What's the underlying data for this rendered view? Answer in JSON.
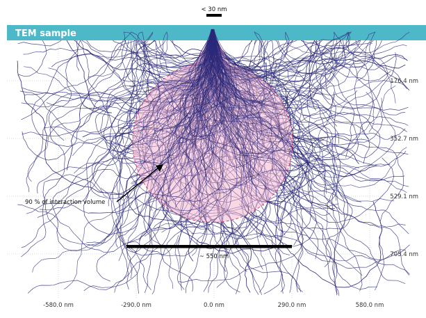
{
  "sample_band": {
    "label": "TEM sample",
    "color": "#4db8c8"
  },
  "beam_width": {
    "label": "< 30 nm"
  },
  "interaction_volume": {
    "label": "90 % of interaction volume",
    "color": "#f4b6cf"
  },
  "lateral_extent": {
    "label": "~ 550 nm"
  },
  "trajectory_color": "#2b2a7a",
  "x_axis": {
    "ticks": [
      {
        "value": -580,
        "label": "-580.0 nm"
      },
      {
        "value": -290,
        "label": "-290.0 nm"
      },
      {
        "value": 0,
        "label": "0.0 nm"
      },
      {
        "value": 290,
        "label": "290.0 nm"
      },
      {
        "value": 580,
        "label": "580.0 nm"
      }
    ]
  },
  "y_axis": {
    "ticks": [
      {
        "value": 176.4,
        "label": "176.4 nm"
      },
      {
        "value": 352.7,
        "label": "352.7 nm"
      },
      {
        "value": 529.1,
        "label": "529.1 nm"
      },
      {
        "value": 705.4,
        "label": "705.4 nm"
      }
    ]
  }
}
